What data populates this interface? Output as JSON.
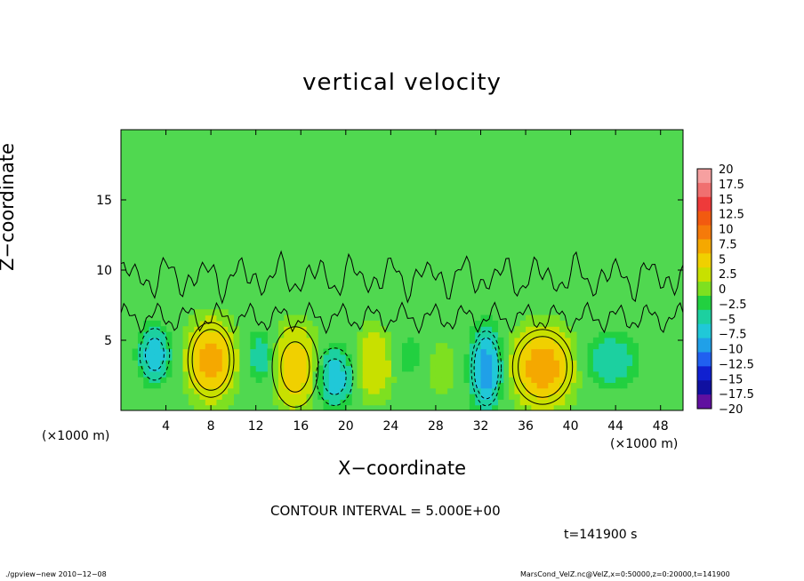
{
  "chart_data": {
    "type": "heatmap",
    "title": "vertical velocity",
    "xlabel": "X−coordinate",
    "ylabel": "Z−coordinate",
    "x_unit_left": "(×1000 m)",
    "x_unit_right": "(×1000 m)",
    "xlim": [
      0,
      50
    ],
    "ylim": [
      0,
      20
    ],
    "x_ticks": [
      4,
      8,
      12,
      16,
      20,
      24,
      28,
      32,
      36,
      40,
      44,
      48
    ],
    "x_tick_labels": [
      "4",
      "8",
      "12",
      "16",
      "20",
      "24",
      "28",
      "32",
      "36",
      "40",
      "44",
      "48"
    ],
    "y_ticks": [
      5,
      10,
      15
    ],
    "y_tick_labels": [
      "5",
      "10",
      "15"
    ],
    "contour_interval_text": "CONTOUR INTERVAL = 5.000E+00",
    "time_text": "t=141900 s",
    "colorbar": {
      "levels": [
        20,
        17.5,
        15,
        12.5,
        10,
        7.5,
        5,
        2.5,
        0,
        -2.5,
        -5,
        -7.5,
        -10,
        -12.5,
        -15,
        -17.5,
        -20
      ],
      "labels": [
        "20",
        "17.5",
        "15",
        "12.5",
        "10",
        "7.5",
        "5",
        "2.5",
        "0",
        "−2.5",
        "−5",
        "−7.5",
        "−10",
        "−12.5",
        "−15",
        "−17.5",
        "−20"
      ],
      "colors": [
        "#f6a0a0",
        "#f07070",
        "#ee3a3a",
        "#f25a10",
        "#f57a0a",
        "#f5a800",
        "#f0d000",
        "#c8e000",
        "#7ee020",
        "#22d040",
        "#1cd0a0",
        "#20c8d8",
        "#20a0e8",
        "#2060f0",
        "#1020d0",
        "#1010a0",
        "#6010a0"
      ]
    },
    "background_color": "#50d850",
    "features": [
      {
        "name": "updraft",
        "x": 8.0,
        "z": 3.6,
        "peak": 10,
        "rx": 2.0,
        "rz": 2.6
      },
      {
        "name": "updraft",
        "x": 15.5,
        "z": 3.1,
        "peak": 7.5,
        "rx": 2.0,
        "rz": 2.8
      },
      {
        "name": "updraft",
        "x": 22.5,
        "z": 3.3,
        "peak": 5,
        "rx": 1.8,
        "rz": 2.6
      },
      {
        "name": "updraft",
        "x": 37.5,
        "z": 3.1,
        "peak": 10,
        "rx": 2.6,
        "rz": 2.6
      },
      {
        "name": "updraft",
        "x": 28.5,
        "z": 3.0,
        "peak": 2.5,
        "rx": 1.5,
        "rz": 2.0
      },
      {
        "name": "downdraft",
        "x": 3.0,
        "z": 4.0,
        "peak": -7.5,
        "rx": 1.3,
        "rz": 1.8
      },
      {
        "name": "downdraft",
        "x": 12.5,
        "z": 3.8,
        "peak": -5,
        "rx": 1.2,
        "rz": 1.8
      },
      {
        "name": "downdraft",
        "x": 19.0,
        "z": 2.4,
        "peak": -7.5,
        "rx": 1.6,
        "rz": 2.0
      },
      {
        "name": "downdraft",
        "x": 25.5,
        "z": 3.8,
        "peak": -2.5,
        "rx": 1.4,
        "rz": 1.6
      },
      {
        "name": "downdraft",
        "x": 32.5,
        "z": 3.0,
        "peak": -10,
        "rx": 1.3,
        "rz": 2.6
      },
      {
        "name": "downdraft",
        "x": 43.5,
        "z": 3.6,
        "peak": -5,
        "rx": 2.2,
        "rz": 1.8
      }
    ]
  },
  "footer": {
    "left": "./gpview−new   2010−12−08",
    "right": "MarsCond_VelZ.nc@VelZ,x=0:50000,z=0:20000,t=141900"
  }
}
